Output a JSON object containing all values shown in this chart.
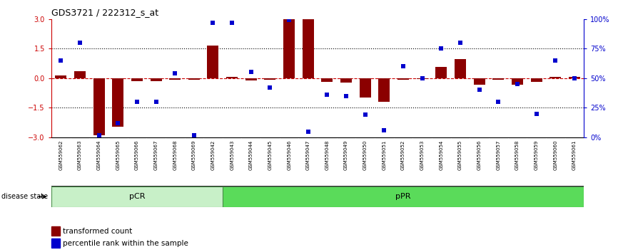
{
  "title": "GDS3721 / 222312_s_at",
  "samples": [
    "GSM559062",
    "GSM559063",
    "GSM559064",
    "GSM559065",
    "GSM559066",
    "GSM559067",
    "GSM559068",
    "GSM559069",
    "GSM559042",
    "GSM559043",
    "GSM559044",
    "GSM559045",
    "GSM559046",
    "GSM559047",
    "GSM559048",
    "GSM559049",
    "GSM559050",
    "GSM559051",
    "GSM559052",
    "GSM559053",
    "GSM559054",
    "GSM559055",
    "GSM559056",
    "GSM559057",
    "GSM559058",
    "GSM559059",
    "GSM559060",
    "GSM559061"
  ],
  "transformed_count": [
    0.15,
    0.35,
    -2.9,
    -2.45,
    -0.15,
    -0.15,
    -0.08,
    -0.08,
    1.65,
    0.05,
    -0.12,
    -0.08,
    3.0,
    3.0,
    -0.18,
    -0.22,
    -1.0,
    -1.2,
    -0.08,
    -0.04,
    0.55,
    0.95,
    -0.32,
    -0.08,
    -0.32,
    -0.18,
    0.05,
    0.05
  ],
  "percentile_rank": [
    65,
    80,
    2,
    12,
    30,
    30,
    54,
    2,
    97,
    97,
    55,
    42,
    99,
    5,
    36,
    35,
    19,
    6,
    60,
    50,
    75,
    80,
    40,
    30,
    45,
    20,
    65,
    50
  ],
  "pCR_count": 9,
  "pPR_count": 19,
  "bar_color": "#8B0000",
  "dot_color": "#0000CD",
  "pCR_facecolor": "#C8F0C8",
  "pPR_facecolor": "#5ADB5A",
  "label_color_left": "#CC0000",
  "label_color_right": "#0000CD",
  "ylim": [
    -3,
    3
  ],
  "yticks": [
    -3,
    -1.5,
    0,
    1.5,
    3
  ],
  "y_right_ticks": [
    0,
    25,
    50,
    75,
    100
  ],
  "y_right_labels": [
    "0%",
    "25%",
    "50%",
    "75%",
    "100%"
  ],
  "dotted_line_values": [
    1.5,
    -1.5
  ],
  "zero_line_color": "#CC0000",
  "tick_bg_color": "#C8C8C8",
  "legend_bar": "transformed count",
  "legend_dot": "percentile rank within the sample",
  "disease_state_label": "disease state"
}
